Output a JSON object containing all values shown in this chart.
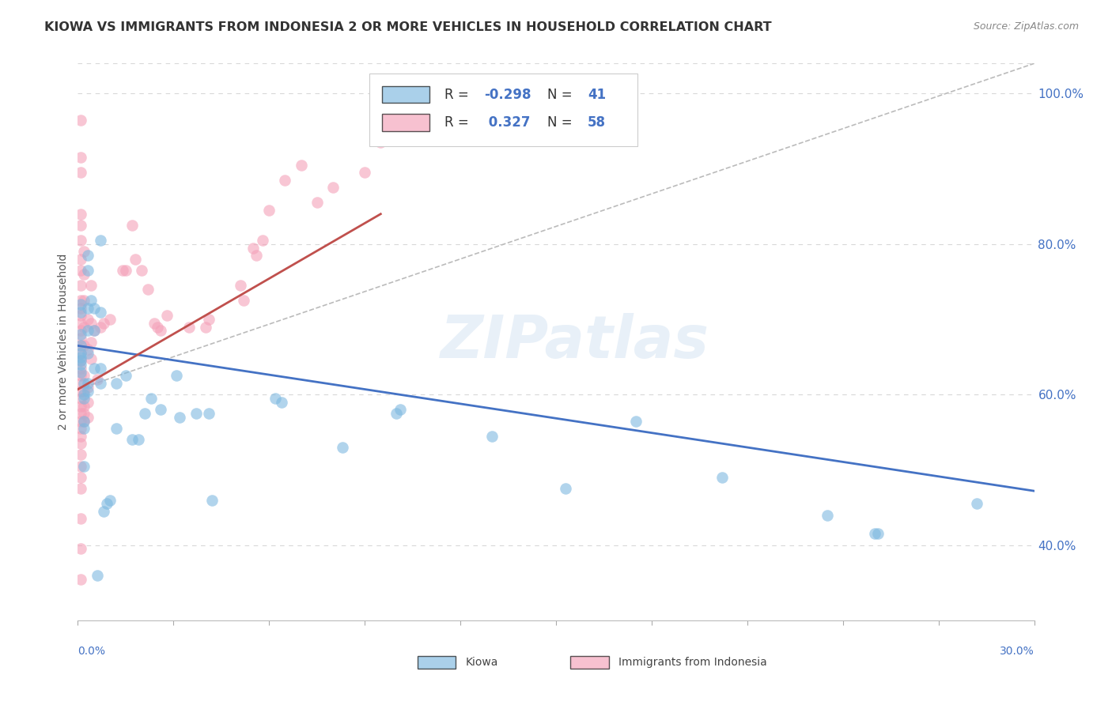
{
  "title": "KIOWA VS IMMIGRANTS FROM INDONESIA 2 OR MORE VEHICLES IN HOUSEHOLD CORRELATION CHART",
  "source": "Source: ZipAtlas.com",
  "ylabel": "2 or more Vehicles in Household",
  "xlim": [
    0.0,
    0.3
  ],
  "ylim": [
    0.3,
    1.04
  ],
  "xtick_positions": [
    0.0,
    0.03,
    0.06,
    0.09,
    0.12,
    0.15,
    0.18,
    0.21,
    0.24,
    0.27,
    0.3
  ],
  "yticks_right": [
    0.4,
    0.6,
    0.8,
    1.0
  ],
  "yticklabels_right": [
    "40.0%",
    "60.0%",
    "80.0%",
    "100.0%"
  ],
  "kiowa_color": "#7db8e0",
  "indonesia_color": "#f4a0b8",
  "watermark": "ZIPatlas",
  "background_color": "#ffffff",
  "grid_color": "#d8d8d8",
  "kiowa_scatter": [
    [
      0.001,
      0.655
    ],
    [
      0.001,
      0.65
    ],
    [
      0.001,
      0.64
    ],
    [
      0.001,
      0.63
    ],
    [
      0.001,
      0.68
    ],
    [
      0.001,
      0.71
    ],
    [
      0.001,
      0.72
    ],
    [
      0.001,
      0.645
    ],
    [
      0.001,
      0.665
    ],
    [
      0.002,
      0.615
    ],
    [
      0.002,
      0.6
    ],
    [
      0.002,
      0.595
    ],
    [
      0.002,
      0.565
    ],
    [
      0.002,
      0.505
    ],
    [
      0.002,
      0.555
    ],
    [
      0.003,
      0.785
    ],
    [
      0.003,
      0.765
    ],
    [
      0.003,
      0.715
    ],
    [
      0.003,
      0.685
    ],
    [
      0.003,
      0.655
    ],
    [
      0.003,
      0.615
    ],
    [
      0.003,
      0.605
    ],
    [
      0.004,
      0.725
    ],
    [
      0.005,
      0.715
    ],
    [
      0.005,
      0.685
    ],
    [
      0.005,
      0.635
    ],
    [
      0.006,
      0.36
    ],
    [
      0.007,
      0.805
    ],
    [
      0.007,
      0.71
    ],
    [
      0.007,
      0.635
    ],
    [
      0.007,
      0.615
    ],
    [
      0.008,
      0.445
    ],
    [
      0.009,
      0.455
    ],
    [
      0.01,
      0.46
    ],
    [
      0.012,
      0.615
    ],
    [
      0.012,
      0.555
    ],
    [
      0.015,
      0.625
    ],
    [
      0.017,
      0.54
    ],
    [
      0.019,
      0.54
    ],
    [
      0.021,
      0.575
    ],
    [
      0.023,
      0.595
    ],
    [
      0.026,
      0.58
    ],
    [
      0.031,
      0.625
    ],
    [
      0.032,
      0.57
    ],
    [
      0.037,
      0.575
    ],
    [
      0.041,
      0.575
    ],
    [
      0.042,
      0.46
    ],
    [
      0.062,
      0.595
    ],
    [
      0.064,
      0.59
    ],
    [
      0.083,
      0.53
    ],
    [
      0.1,
      0.575
    ],
    [
      0.101,
      0.58
    ],
    [
      0.13,
      0.545
    ],
    [
      0.153,
      0.475
    ],
    [
      0.175,
      0.565
    ],
    [
      0.202,
      0.49
    ],
    [
      0.235,
      0.44
    ],
    [
      0.251,
      0.415
    ],
    [
      0.25,
      0.415
    ],
    [
      0.282,
      0.455
    ]
  ],
  "indonesia_scatter": [
    [
      0.001,
      0.965
    ],
    [
      0.001,
      0.915
    ],
    [
      0.001,
      0.895
    ],
    [
      0.001,
      0.84
    ],
    [
      0.001,
      0.825
    ],
    [
      0.001,
      0.805
    ],
    [
      0.001,
      0.78
    ],
    [
      0.001,
      0.765
    ],
    [
      0.001,
      0.745
    ],
    [
      0.001,
      0.725
    ],
    [
      0.001,
      0.715
    ],
    [
      0.001,
      0.705
    ],
    [
      0.001,
      0.695
    ],
    [
      0.001,
      0.685
    ],
    [
      0.001,
      0.675
    ],
    [
      0.001,
      0.665
    ],
    [
      0.001,
      0.655
    ],
    [
      0.001,
      0.645
    ],
    [
      0.001,
      0.635
    ],
    [
      0.001,
      0.625
    ],
    [
      0.001,
      0.615
    ],
    [
      0.001,
      0.605
    ],
    [
      0.001,
      0.595
    ],
    [
      0.001,
      0.585
    ],
    [
      0.001,
      0.575
    ],
    [
      0.001,
      0.565
    ],
    [
      0.001,
      0.555
    ],
    [
      0.001,
      0.545
    ],
    [
      0.001,
      0.535
    ],
    [
      0.001,
      0.52
    ],
    [
      0.001,
      0.505
    ],
    [
      0.001,
      0.49
    ],
    [
      0.001,
      0.475
    ],
    [
      0.001,
      0.435
    ],
    [
      0.001,
      0.395
    ],
    [
      0.001,
      0.355
    ],
    [
      0.002,
      0.79
    ],
    [
      0.002,
      0.76
    ],
    [
      0.002,
      0.725
    ],
    [
      0.002,
      0.69
    ],
    [
      0.002,
      0.665
    ],
    [
      0.002,
      0.625
    ],
    [
      0.002,
      0.605
    ],
    [
      0.002,
      0.585
    ],
    [
      0.002,
      0.575
    ],
    [
      0.002,
      0.565
    ],
    [
      0.003,
      0.7
    ],
    [
      0.003,
      0.66
    ],
    [
      0.003,
      0.61
    ],
    [
      0.003,
      0.59
    ],
    [
      0.003,
      0.57
    ],
    [
      0.004,
      0.745
    ],
    [
      0.004,
      0.695
    ],
    [
      0.004,
      0.67
    ],
    [
      0.004,
      0.648
    ],
    [
      0.005,
      0.685
    ],
    [
      0.006,
      0.62
    ],
    [
      0.007,
      0.69
    ],
    [
      0.008,
      0.695
    ],
    [
      0.01,
      0.7
    ],
    [
      0.014,
      0.765
    ],
    [
      0.015,
      0.765
    ],
    [
      0.017,
      0.825
    ],
    [
      0.018,
      0.78
    ],
    [
      0.02,
      0.765
    ],
    [
      0.022,
      0.74
    ],
    [
      0.024,
      0.695
    ],
    [
      0.025,
      0.69
    ],
    [
      0.026,
      0.685
    ],
    [
      0.028,
      0.705
    ],
    [
      0.035,
      0.69
    ],
    [
      0.04,
      0.69
    ],
    [
      0.041,
      0.7
    ],
    [
      0.051,
      0.745
    ],
    [
      0.052,
      0.725
    ],
    [
      0.055,
      0.795
    ],
    [
      0.056,
      0.785
    ],
    [
      0.058,
      0.805
    ],
    [
      0.06,
      0.845
    ],
    [
      0.065,
      0.885
    ],
    [
      0.07,
      0.905
    ],
    [
      0.075,
      0.855
    ],
    [
      0.08,
      0.875
    ],
    [
      0.09,
      0.895
    ],
    [
      0.095,
      0.935
    ]
  ],
  "kiowa_line_x": [
    0.0,
    0.3
  ],
  "kiowa_line_y": [
    0.665,
    0.472
  ],
  "indonesia_line_x": [
    0.0,
    0.095
  ],
  "indonesia_line_y": [
    0.607,
    0.84
  ],
  "dashed_line_x": [
    0.0,
    0.3
  ],
  "dashed_line_y": [
    0.607,
    1.04
  ]
}
